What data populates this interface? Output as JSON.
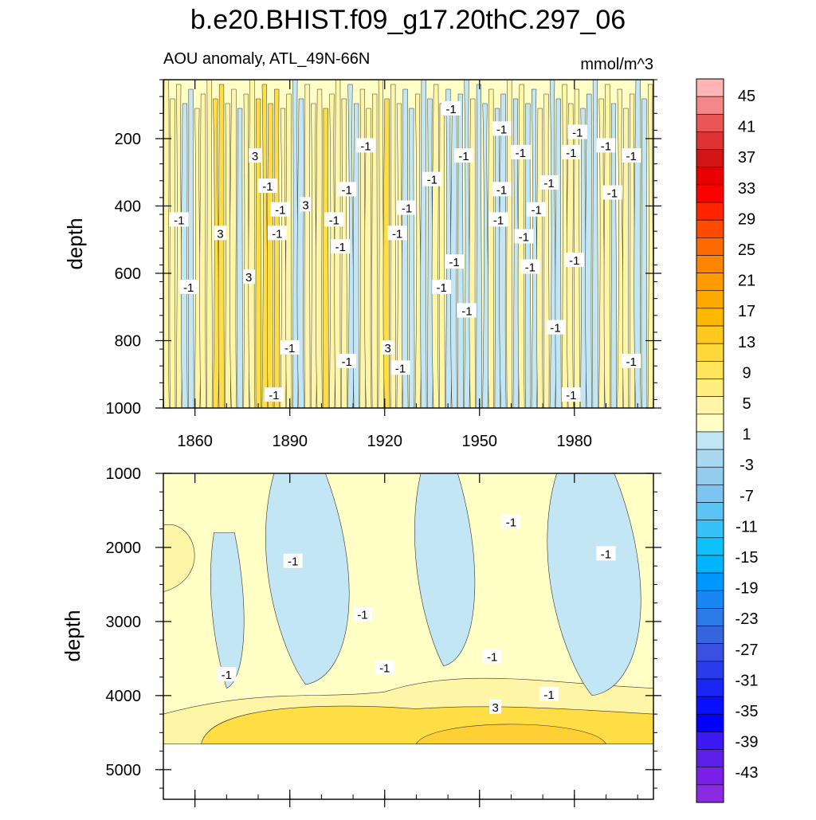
{
  "chart_data": {
    "type": "heatmap",
    "title": "b.e20.BHIST.f09_g17.20thC.297_06",
    "subtitle_left": "AOU anomaly, ATL_49N-66N",
    "units": "mmol/m^3",
    "x_range": [
      1850,
      2005
    ],
    "x_ticks": [
      1860,
      1890,
      1920,
      1950,
      1980
    ],
    "top_panel": {
      "ylabel": "depth",
      "ylim": [
        0,
        1000
      ],
      "y_ticks": [
        200,
        400,
        600,
        800,
        1000
      ],
      "column_anomalies": [
        1,
        1,
        1,
        -1,
        -1,
        1,
        1,
        1,
        3,
        3,
        1,
        1,
        -1,
        1,
        1,
        3,
        3,
        3,
        3,
        1,
        1,
        -1,
        -1,
        1,
        1,
        1,
        3,
        1,
        1,
        1,
        -1,
        -1,
        1,
        1,
        1,
        1,
        3,
        1,
        1,
        -1,
        -1,
        1,
        -1,
        -1,
        1,
        1,
        -1,
        -1,
        -1,
        -1,
        1,
        -1,
        -1,
        1,
        -1,
        -1,
        1,
        -1,
        1,
        -1,
        -1,
        1,
        1,
        -1,
        -1,
        1,
        1,
        1,
        -1,
        -1,
        -1,
        1,
        1,
        -1,
        1,
        1,
        1,
        -1,
        -1,
        1
      ],
      "contour_labels": [
        {
          "text": "-1",
          "x": 1855,
          "y": 440
        },
        {
          "text": "-1",
          "x": 1858,
          "y": 640
        },
        {
          "text": "3",
          "x": 1868,
          "y": 480
        },
        {
          "text": "3",
          "x": 1879,
          "y": 250
        },
        {
          "text": "3",
          "x": 1877,
          "y": 610
        },
        {
          "text": "-1",
          "x": 1883,
          "y": 340
        },
        {
          "text": "-1",
          "x": 1887,
          "y": 410
        },
        {
          "text": "-1",
          "x": 1886,
          "y": 480
        },
        {
          "text": "3",
          "x": 1895,
          "y": 395
        },
        {
          "text": "-1",
          "x": 1885,
          "y": 960
        },
        {
          "text": "-1",
          "x": 1890,
          "y": 820
        },
        {
          "text": "-1",
          "x": 1904,
          "y": 440
        },
        {
          "text": "-1",
          "x": 1908,
          "y": 350
        },
        {
          "text": "-1",
          "x": 1906,
          "y": 520
        },
        {
          "text": "-1",
          "x": 1914,
          "y": 220
        },
        {
          "text": "-1",
          "x": 1908,
          "y": 860
        },
        {
          "text": "3",
          "x": 1921,
          "y": 820
        },
        {
          "text": "-1",
          "x": 1924,
          "y": 480
        },
        {
          "text": "-1",
          "x": 1925,
          "y": 880
        },
        {
          "text": "-1",
          "x": 1927,
          "y": 405
        },
        {
          "text": "-1",
          "x": 1935,
          "y": 320
        },
        {
          "text": "-1",
          "x": 1941,
          "y": 110
        },
        {
          "text": "-1",
          "x": 1942,
          "y": 565
        },
        {
          "text": "-1",
          "x": 1938,
          "y": 640
        },
        {
          "text": "-1",
          "x": 1946,
          "y": 710
        },
        {
          "text": "-1",
          "x": 1945,
          "y": 250
        },
        {
          "text": "-1",
          "x": 1957,
          "y": 170
        },
        {
          "text": "-1",
          "x": 1956,
          "y": 440
        },
        {
          "text": "-1",
          "x": 1957,
          "y": 350
        },
        {
          "text": "-1",
          "x": 1963,
          "y": 240
        },
        {
          "text": "-1",
          "x": 1964,
          "y": 490
        },
        {
          "text": "-1",
          "x": 1966,
          "y": 580
        },
        {
          "text": "-1",
          "x": 1968,
          "y": 410
        },
        {
          "text": "-1",
          "x": 1972,
          "y": 330
        },
        {
          "text": "-1",
          "x": 1974,
          "y": 760
        },
        {
          "text": "-1",
          "x": 1979,
          "y": 240
        },
        {
          "text": "-1",
          "x": 1980,
          "y": 560
        },
        {
          "text": "-1",
          "x": 1981,
          "y": 180
        },
        {
          "text": "-1",
          "x": 1979,
          "y": 960
        },
        {
          "text": "-1",
          "x": 1990,
          "y": 220
        },
        {
          "text": "-1",
          "x": 1992,
          "y": 360
        },
        {
          "text": "-1",
          "x": 1998,
          "y": 250
        },
        {
          "text": "-1",
          "x": 1998,
          "y": 860
        }
      ]
    },
    "bottom_panel": {
      "ylabel": "depth",
      "ylim": [
        1000,
        5400
      ],
      "y_ticks": [
        1000,
        2000,
        3000,
        4000,
        5000
      ],
      "data_bottom": 4650,
      "anomaly_tongues": [
        {
          "x_top": 1868,
          "top": 1800,
          "bottom": 3900,
          "width": 10
        },
        {
          "x_top": 1890,
          "top": 1000,
          "bottom": 3850,
          "width": 25
        },
        {
          "x_top": 1935,
          "top": 1000,
          "bottom": 3600,
          "width": 18
        },
        {
          "x_top": 1980,
          "top": 1000,
          "bottom": 4000,
          "width": 28
        }
      ],
      "contour_labels": [
        {
          "text": "-1",
          "x": 1891,
          "y": 2180
        },
        {
          "text": "-1",
          "x": 1913,
          "y": 2900
        },
        {
          "text": "-1",
          "x": 1870,
          "y": 3710
        },
        {
          "text": "-1",
          "x": 1920,
          "y": 3620
        },
        {
          "text": "-1",
          "x": 1954,
          "y": 3470
        },
        {
          "text": "-1",
          "x": 1960,
          "y": 1650
        },
        {
          "text": "-1",
          "x": 1990,
          "y": 2080
        },
        {
          "text": "-1",
          "x": 1972,
          "y": 3980
        },
        {
          "text": "3",
          "x": 1955,
          "y": 4150
        }
      ]
    },
    "colorbar": {
      "labels": [
        "45",
        "41",
        "37",
        "33",
        "29",
        "25",
        "21",
        "17",
        "13",
        "9",
        "5",
        "1",
        "-3",
        "-7",
        "-11",
        "-15",
        "-19",
        "-23",
        "-27",
        "-31",
        "-35",
        "-39",
        "-43"
      ],
      "colors": [
        "#ffb5b5",
        "#f48787",
        "#e95555",
        "#de3333",
        "#d41515",
        "#e80000",
        "#ff0000",
        "#ff2400",
        "#ff4a00",
        "#ff6a00",
        "#ff8400",
        "#ff9a00",
        "#ffa800",
        "#ffb800",
        "#ffc820",
        "#ffd83c",
        "#ffe45c",
        "#ffee80",
        "#fff4a8",
        "#ffffc6",
        "#c0e6f4",
        "#aad8ef",
        "#94ccee",
        "#7ec4f0",
        "#5cc4f4",
        "#38c0f8",
        "#10c0fc",
        "#00b4ff",
        "#0096ff",
        "#1a86f4",
        "#2a7ae8",
        "#3564dc",
        "#3a50e0",
        "#2a3cec",
        "#1a26f4",
        "#0a10fc",
        "#0000ff",
        "#3c18f4",
        "#5c20e8",
        "#7820e8",
        "#8a2be2"
      ]
    },
    "palette": {
      "pos3": "#ffdd45",
      "pos1": "#fff5a6",
      "bg": "#ffffc6",
      "neg1": "#c2e6f4",
      "neg3": "#a5d4ee"
    }
  }
}
